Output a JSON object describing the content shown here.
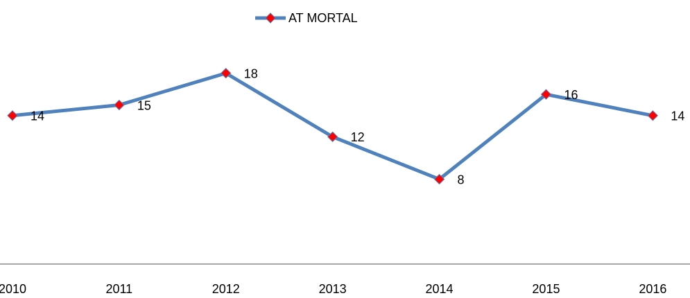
{
  "chart_data": {
    "type": "line",
    "categories": [
      "2010",
      "2011",
      "2012",
      "2013",
      "2014",
      "2015",
      "2016"
    ],
    "series": [
      {
        "name": "AT MORTAL",
        "color": "#4f81bd",
        "marker_color": "#ff0000",
        "values": [
          14,
          15,
          18,
          12,
          8,
          16,
          14
        ]
      }
    ],
    "ylim": [
      0,
      20
    ],
    "legend": "top"
  }
}
